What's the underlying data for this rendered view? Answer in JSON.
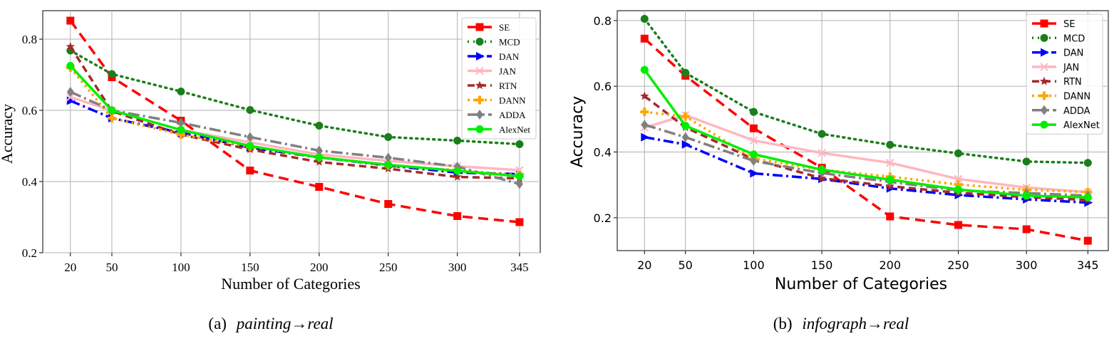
{
  "chart_data": [
    {
      "type": "line",
      "title": "",
      "caption": {
        "label": "(a)",
        "source": "painting",
        "arrow": "→",
        "target": "real"
      },
      "xlabel": "Number of Categories",
      "ylabel": "Accuracy",
      "x": [
        20,
        50,
        100,
        150,
        200,
        250,
        300,
        345
      ],
      "xlim": [
        0,
        360
      ],
      "ylim": [
        0.2,
        0.88
      ],
      "yticks": [
        0.2,
        0.4,
        0.6,
        0.8
      ],
      "yticklabels": [
        "0.2",
        "0.4",
        "0.6",
        "0.8"
      ],
      "xticklabels": [
        "20",
        "50",
        "100",
        "150",
        "200",
        "250",
        "300",
        "345"
      ],
      "legend_position": "top-right",
      "grid": true,
      "series": [
        {
          "name": "SE",
          "values": [
            0.852,
            0.693,
            0.571,
            0.431,
            0.385,
            0.337,
            0.303,
            0.286
          ]
        },
        {
          "name": "MCD",
          "values": [
            0.768,
            0.702,
            0.653,
            0.601,
            0.557,
            0.525,
            0.515,
            0.505
          ]
        },
        {
          "name": "DAN",
          "values": [
            0.627,
            0.578,
            0.537,
            0.495,
            0.468,
            0.445,
            0.425,
            0.421
          ]
        },
        {
          "name": "JAN",
          "values": [
            0.637,
            0.6,
            0.545,
            0.51,
            0.476,
            0.458,
            0.443,
            0.432
          ]
        },
        {
          "name": "RTN",
          "values": [
            0.779,
            0.598,
            0.532,
            0.49,
            0.455,
            0.436,
            0.413,
            0.409
          ]
        },
        {
          "name": "DANN",
          "values": [
            0.72,
            0.578,
            0.532,
            0.498,
            0.468,
            0.445,
            0.432,
            0.418
          ]
        },
        {
          "name": "ADDA",
          "values": [
            0.652,
            0.6,
            0.565,
            0.525,
            0.487,
            0.467,
            0.442,
            0.393
          ]
        },
        {
          "name": "AlexNet",
          "values": [
            0.725,
            0.6,
            0.545,
            0.5,
            0.468,
            0.447,
            0.43,
            0.415
          ]
        }
      ]
    },
    {
      "type": "line",
      "title": "",
      "caption": {
        "label": "(b)",
        "source": "infograph",
        "arrow": "→",
        "target": "real"
      },
      "xlabel": "Number of Categories",
      "ylabel": "Accuracy",
      "x": [
        20,
        50,
        100,
        150,
        200,
        250,
        300,
        345
      ],
      "xlim": [
        0,
        360
      ],
      "ylim": [
        0.1,
        0.83
      ],
      "yticks": [
        0.2,
        0.4,
        0.6,
        0.8
      ],
      "yticklabels": [
        "0.2",
        "0.4",
        "0.6",
        "0.8"
      ],
      "xticklabels": [
        "20",
        "50",
        "100",
        "150",
        "200",
        "250",
        "300",
        "345"
      ],
      "legend_position": "top-right",
      "grid": true,
      "series": [
        {
          "name": "SE",
          "values": [
            0.745,
            0.632,
            0.472,
            0.352,
            0.204,
            0.178,
            0.165,
            0.13
          ]
        },
        {
          "name": "MCD",
          "values": [
            0.805,
            0.641,
            0.522,
            0.455,
            0.422,
            0.396,
            0.371,
            0.367
          ]
        },
        {
          "name": "DAN",
          "values": [
            0.445,
            0.423,
            0.335,
            0.318,
            0.289,
            0.269,
            0.256,
            0.246
          ]
        },
        {
          "name": "JAN",
          "values": [
            0.474,
            0.512,
            0.435,
            0.397,
            0.367,
            0.318,
            0.292,
            0.278
          ]
        },
        {
          "name": "RTN",
          "values": [
            0.57,
            0.475,
            0.378,
            0.32,
            0.296,
            0.276,
            0.263,
            0.254
          ]
        },
        {
          "name": "DANN",
          "values": [
            0.522,
            0.508,
            0.38,
            0.346,
            0.325,
            0.301,
            0.285,
            0.278
          ]
        },
        {
          "name": "ADDA",
          "values": [
            0.483,
            0.445,
            0.373,
            0.336,
            0.309,
            0.283,
            0.275,
            0.267
          ]
        },
        {
          "name": "AlexNet",
          "values": [
            0.65,
            0.48,
            0.393,
            0.346,
            0.316,
            0.286,
            0.267,
            0.262
          ]
        }
      ]
    }
  ],
  "series_style": {
    "SE": {
      "color": "#ff0000",
      "marker": "square",
      "dash": "14,8"
    },
    "MCD": {
      "color": "#1a7f1a",
      "marker": "circle",
      "dash": "2,6"
    },
    "DAN": {
      "color": "#0000ff",
      "marker": "triangle-right",
      "dash": "14,5,3,5"
    },
    "JAN": {
      "color": "#ffb6c1",
      "marker": "x",
      "dash": ""
    },
    "RTN": {
      "color": "#a52a2a",
      "marker": "star",
      "dash": "10,6"
    },
    "DANN": {
      "color": "#ffa500",
      "marker": "plus",
      "dash": "3,5"
    },
    "ADDA": {
      "color": "#808080",
      "marker": "diamond",
      "dash": "16,5,3,5"
    },
    "AlexNet": {
      "color": "#00ee00",
      "marker": "circle",
      "dash": ""
    }
  }
}
